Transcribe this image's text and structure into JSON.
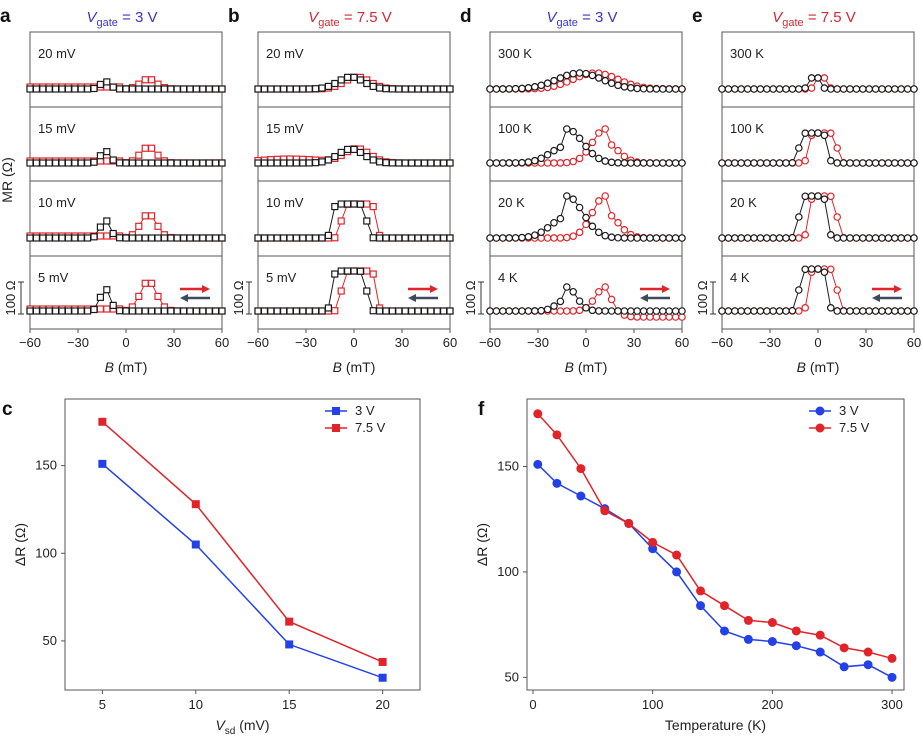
{
  "colors": {
    "red": "#e0242a",
    "black": "#1a1a1a",
    "blue": "#2341e6",
    "title_blue": "#3a36c8",
    "title_red": "#cc2a36",
    "arrow_dark": "#3d4a5c",
    "axis": "#555555"
  },
  "panels_top": [
    {
      "letter": "a",
      "title_var": "V",
      "title_sub": "gate",
      "title_value": " = 3 V",
      "title_color": "#3a36c8",
      "rows": [
        "20 mV",
        "15 mV",
        "10 mV",
        "5 mV"
      ],
      "marker": "square",
      "scale_label": "100 Ω",
      "ylabel": "MR (Ω)"
    },
    {
      "letter": "b",
      "title_var": "V",
      "title_sub": "gate",
      "title_value": " = 7.5 V",
      "title_color": "#cc2a36",
      "rows": [
        "20 mV",
        "15 mV",
        "10 mV",
        "5 mV"
      ],
      "marker": "square",
      "scale_label": "100 Ω",
      "ylabel": ""
    },
    {
      "letter": "d",
      "title_var": "V",
      "title_sub": "gate",
      "title_value": " = 3 V",
      "title_color": "#3a36c8",
      "rows": [
        "300 K",
        "100 K",
        "20 K",
        "4 K"
      ],
      "marker": "circle",
      "scale_label": "100 Ω",
      "ylabel": ""
    },
    {
      "letter": "e",
      "title_var": "V",
      "title_sub": "gate",
      "title_value": " = 7.5 V",
      "title_color": "#cc2a36",
      "rows": [
        "300 K",
        "100 K",
        "20 K",
        "4 K"
      ],
      "marker": "circle",
      "scale_label": "100 Ω",
      "ylabel": ""
    }
  ],
  "top_x_ticks": [
    "−60",
    "−30",
    "0",
    "30",
    "60"
  ],
  "top_xlabel_var": "B",
  "top_xlabel_unit": " (mT)",
  "chart_data": [
    {
      "panel": "c",
      "type": "line",
      "x": [
        5,
        10,
        15,
        20
      ],
      "xlim": [
        3,
        22
      ],
      "ylim": [
        22,
        188
      ],
      "x_ticks": [
        "5",
        "10",
        "15",
        "20"
      ],
      "y_ticks": [
        "50",
        "100",
        "150"
      ],
      "y_tick_values": [
        50,
        100,
        150
      ],
      "x_tick_values": [
        5,
        10,
        15,
        20
      ],
      "xlabel_var": "V",
      "xlabel_sub": "sd",
      "xlabel_unit": " (mV)",
      "ylabel": "ΔR (Ω)",
      "series": [
        {
          "name": "3 V",
          "values": [
            151,
            105,
            48,
            29
          ],
          "color": "#2341e6",
          "marker": "square"
        },
        {
          "name": "7.5 V",
          "values": [
            175,
            128,
            61,
            38
          ],
          "color": "#e0242a",
          "marker": "square"
        }
      ],
      "legend": "top-right"
    },
    {
      "panel": "f",
      "type": "line",
      "x": [
        4,
        20,
        40,
        60,
        80,
        100,
        120,
        140,
        160,
        180,
        200,
        220,
        240,
        260,
        280,
        300
      ],
      "xlim": [
        -5,
        310
      ],
      "ylim": [
        44,
        182
      ],
      "x_ticks": [
        "0",
        "100",
        "200",
        "300"
      ],
      "x_tick_values": [
        0,
        100,
        200,
        300
      ],
      "y_ticks": [
        "50",
        "100",
        "150"
      ],
      "y_tick_values": [
        50,
        100,
        150
      ],
      "xlabel": "Temperature (K)",
      "ylabel": "ΔR (Ω)",
      "series": [
        {
          "name": "3 V",
          "values": [
            151,
            142,
            136,
            130,
            123,
            111,
            100,
            84,
            72,
            68,
            67,
            65,
            62,
            55,
            56,
            50
          ],
          "color": "#2341e6",
          "marker": "circle"
        },
        {
          "name": "7.5 V",
          "values": [
            175,
            165,
            149,
            129,
            123,
            114,
            108,
            91,
            84,
            77,
            76,
            72,
            70,
            64,
            62,
            59
          ],
          "color": "#e0242a",
          "marker": "circle"
        }
      ],
      "legend": "top-right"
    }
  ]
}
